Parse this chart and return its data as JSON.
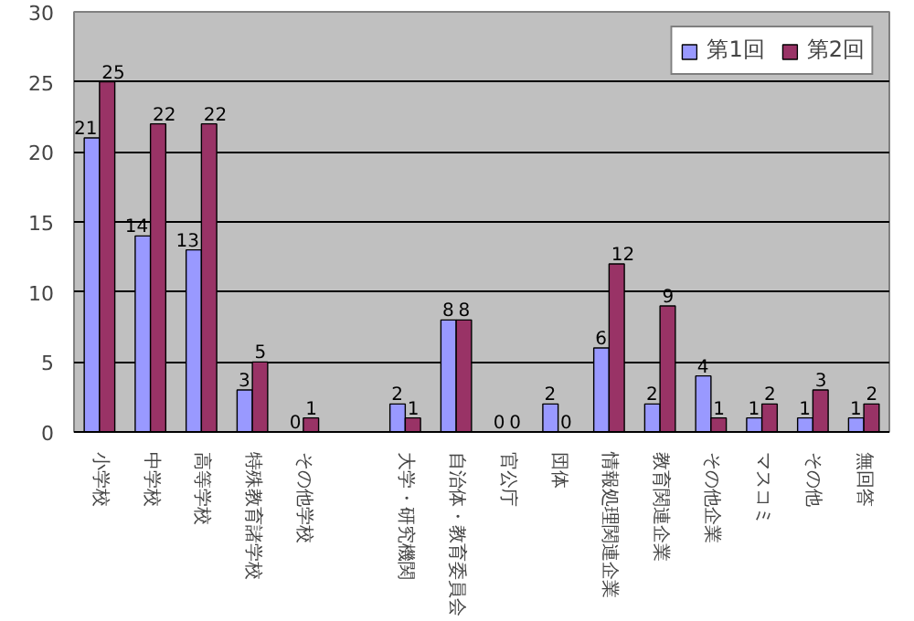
{
  "chart_data": {
    "type": "bar",
    "categories": [
      "小学校",
      "中学校",
      "高等学校",
      "特殊教育諸学校",
      "その他学校",
      null,
      "大学・研究機関",
      "自治体・教育委員会",
      "官公庁",
      "団体",
      "情報処理関連企業",
      "教育関連企業",
      "その他企業",
      "マスコミ",
      "その他",
      "無回答"
    ],
    "series": [
      {
        "name": "第1回",
        "color": "#9999ff",
        "values": [
          21,
          14,
          13,
          3,
          0,
          null,
          2,
          8,
          0,
          2,
          6,
          2,
          4,
          1,
          1,
          1
        ]
      },
      {
        "name": "第2回",
        "color": "#993366",
        "values": [
          25,
          22,
          22,
          5,
          1,
          null,
          1,
          8,
          0,
          0,
          12,
          9,
          1,
          2,
          3,
          2
        ]
      }
    ],
    "ylim": [
      0,
      30
    ],
    "yticks": [
      0,
      5,
      10,
      15,
      20,
      25,
      30
    ],
    "grid": "y",
    "legend": "top right",
    "data_labels": true
  }
}
